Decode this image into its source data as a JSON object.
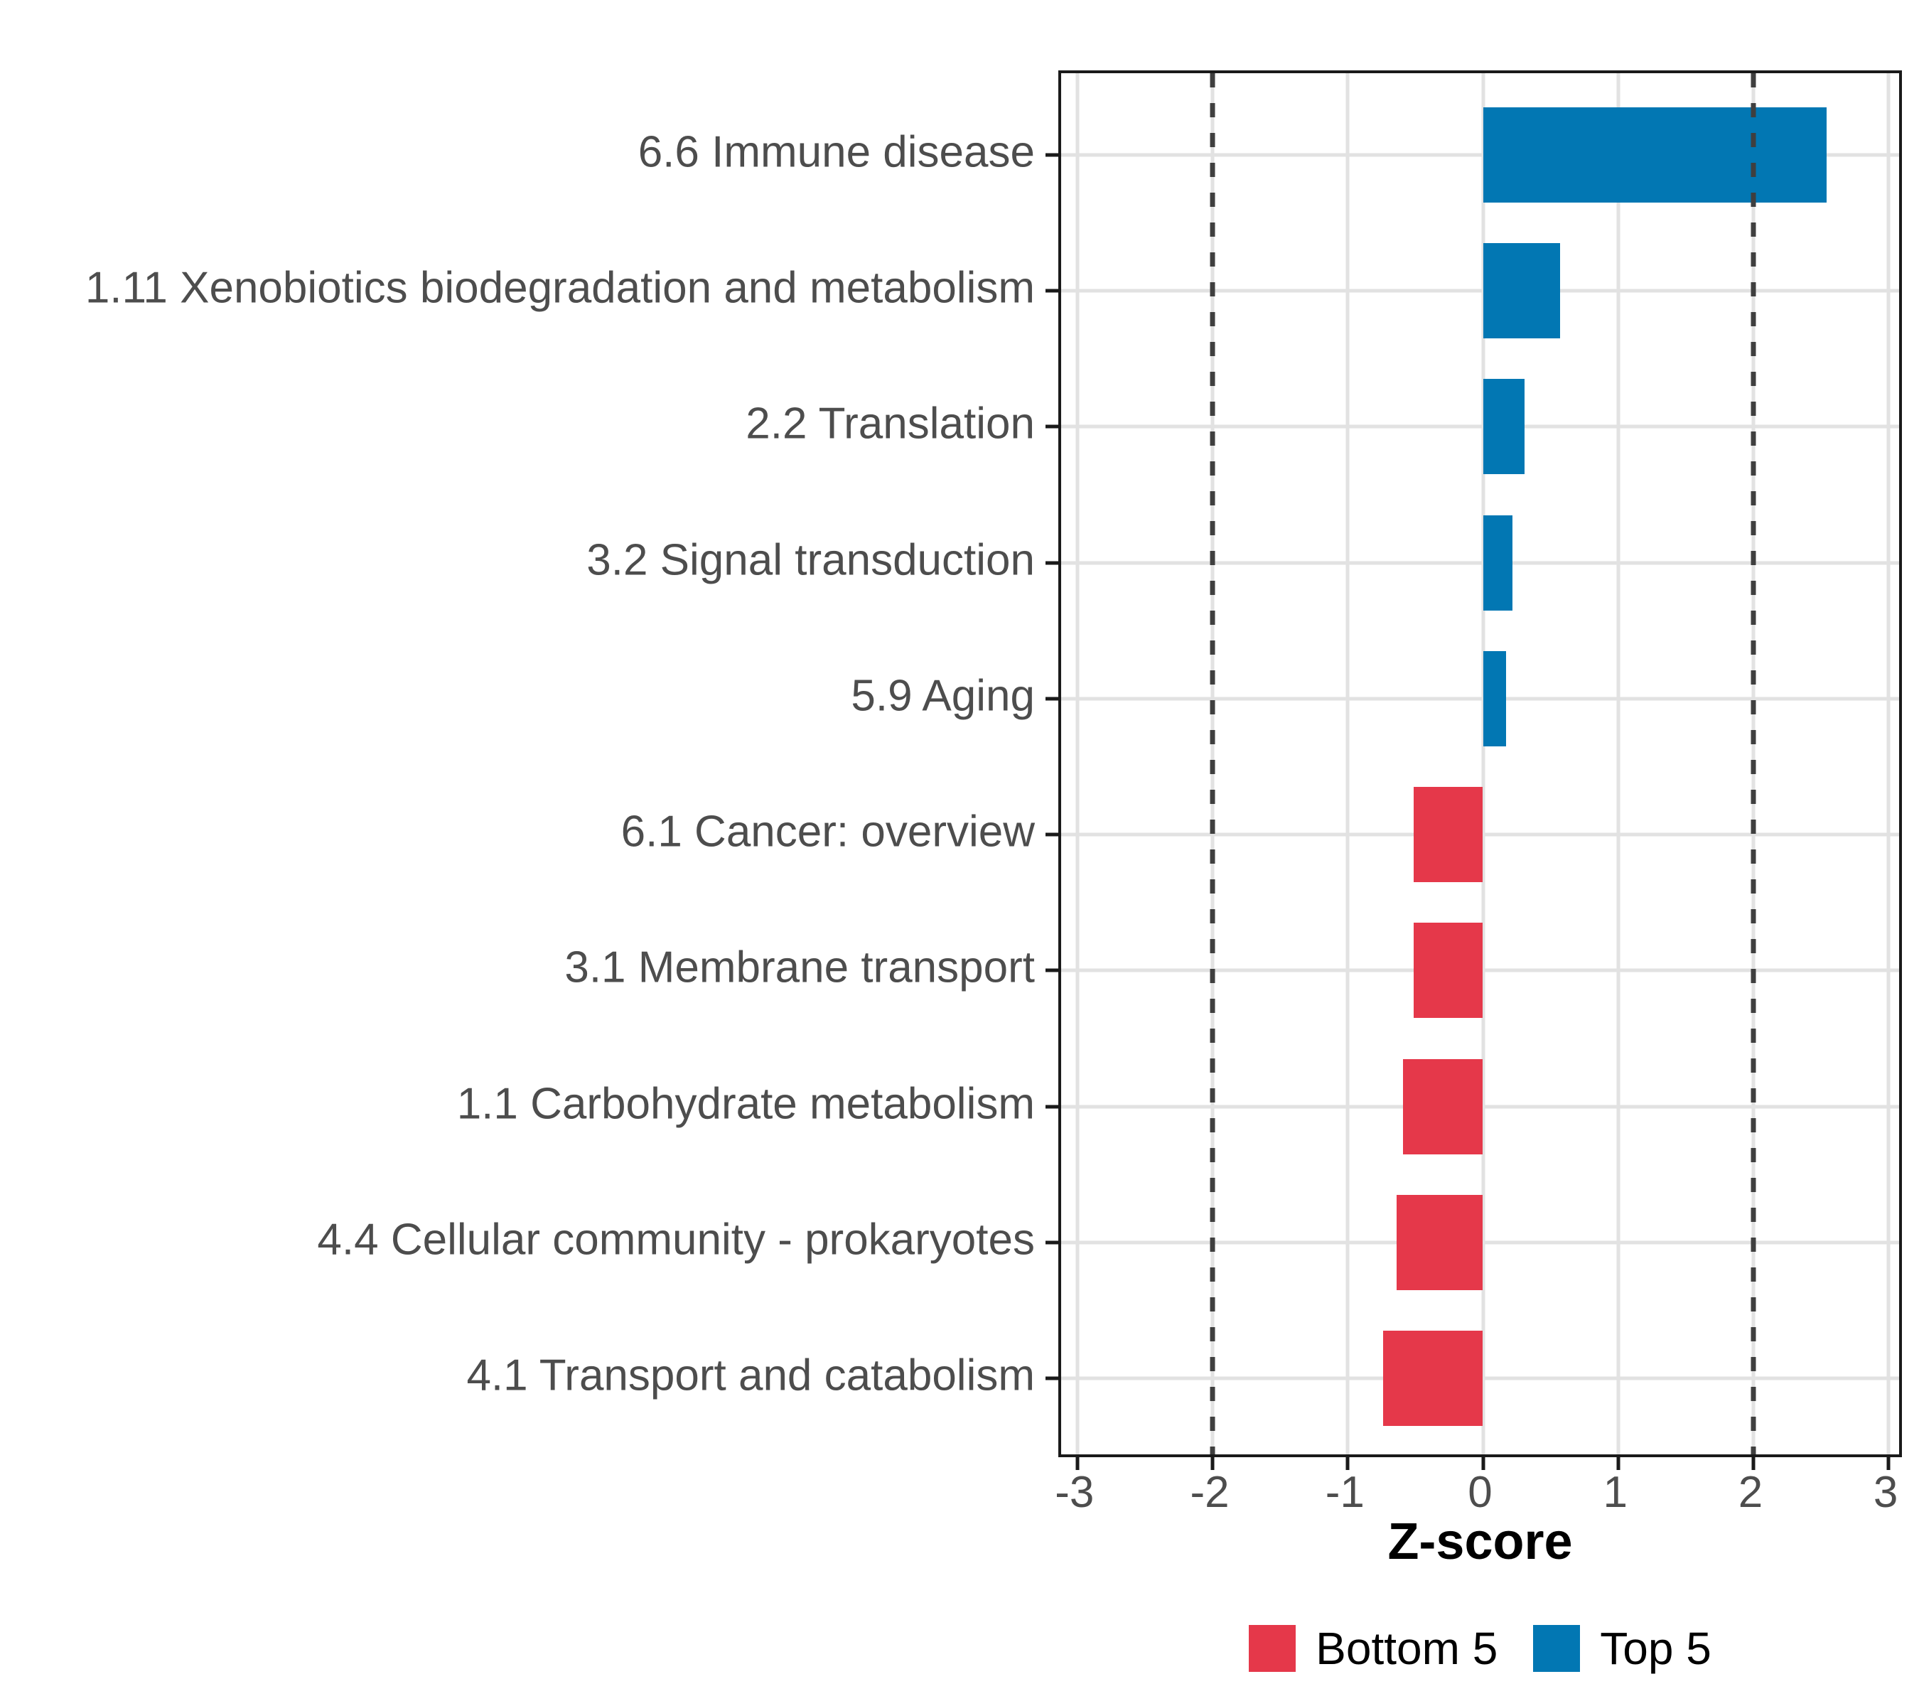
{
  "chart_data": {
    "type": "bar",
    "orientation": "horizontal",
    "title": "",
    "xlabel": "Z-score",
    "ylabel": "",
    "categories": [
      "6.6 Immune disease",
      "1.11 Xenobiotics biodegradation and metabolism",
      "2.2 Translation",
      "3.2 Signal transduction",
      "5.9 Aging",
      "6.1 Cancer: overview",
      "3.1 Membrane transport",
      "1.1 Carbohydrate metabolism",
      "4.4 Cellular community - prokaryotes",
      "4.1 Transport and catabolism"
    ],
    "values": [
      2.54,
      0.57,
      0.31,
      0.22,
      0.17,
      -0.51,
      -0.51,
      -0.59,
      -0.64,
      -0.74
    ],
    "groups": [
      "Top 5",
      "Top 5",
      "Top 5",
      "Top 5",
      "Top 5",
      "Bottom 5",
      "Bottom 5",
      "Bottom 5",
      "Bottom 5",
      "Bottom 5"
    ],
    "xlim": [
      -3.12,
      3.12
    ],
    "x_ticks": [
      -3,
      -2,
      -1,
      0,
      1,
      2,
      3
    ],
    "reference_lines": [
      -2,
      2
    ],
    "reference_line_style": "dashed",
    "reference_line_color": "#3f3f3f",
    "grid": "major",
    "gridline_color": "#e2e2e2",
    "axis_text_color": "#4d4d4d",
    "legend_position": "bottom",
    "legend": [
      {
        "label": "Bottom 5",
        "color": "#e5384a"
      },
      {
        "label": "Top 5",
        "color": "#0277b3"
      }
    ]
  }
}
